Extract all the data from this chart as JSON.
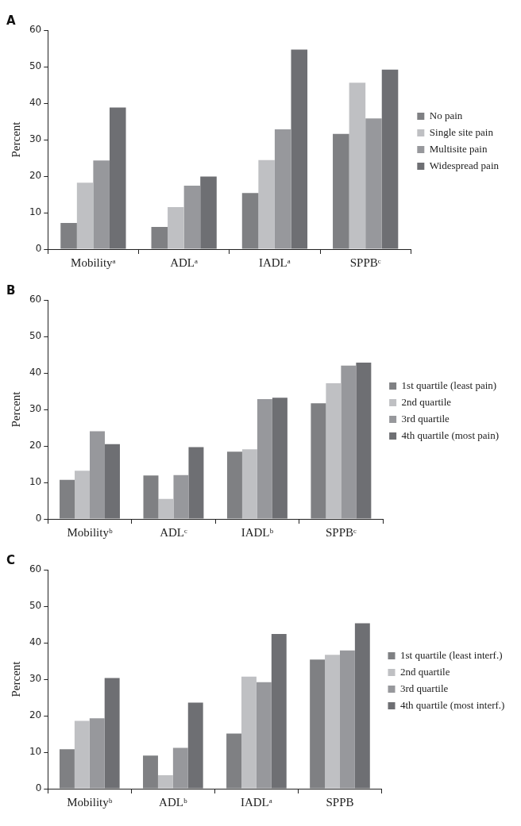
{
  "chart_data": [
    {
      "type": "bar",
      "title": "A",
      "ylabel": "Percent",
      "categories": [
        "Mobilityᵃ",
        "ADLᵃ",
        "IADLᵃ",
        "SPPBᶜ"
      ],
      "ylim": [
        0,
        60
      ],
      "yticks": [
        0,
        10,
        20,
        30,
        40,
        50,
        60
      ],
      "grid": false,
      "legend": "right",
      "series": [
        {
          "name": "No pain",
          "color": "#7f8083",
          "values": [
            7.2,
            6.1,
            15.4,
            31.6
          ]
        },
        {
          "name": "Single site pain",
          "color": "#bfc0c3",
          "values": [
            18.2,
            11.5,
            24.4,
            45.6
          ]
        },
        {
          "name": "Multisite pain",
          "color": "#97989c",
          "values": [
            24.3,
            17.4,
            32.8,
            35.8
          ]
        },
        {
          "name": "Widespread pain",
          "color": "#6e6f73",
          "values": [
            38.8,
            19.9,
            54.7,
            49.2
          ]
        }
      ]
    },
    {
      "type": "bar",
      "title": "B",
      "ylabel": "Percent",
      "categories": [
        "Mobilityᵇ",
        "ADLᶜ",
        "IADLᵇ",
        "SPPBᶜ"
      ],
      "ylim": [
        0,
        60
      ],
      "yticks": [
        0,
        10,
        20,
        30,
        40,
        50,
        60
      ],
      "grid": false,
      "legend": "right",
      "series": [
        {
          "name": "1st quartile (least pain)",
          "color": "#7f8083",
          "values": [
            10.7,
            11.9,
            18.4,
            31.7
          ]
        },
        {
          "name": "2nd quartile",
          "color": "#bfc0c3",
          "values": [
            13.2,
            5.5,
            19.1,
            37.2
          ]
        },
        {
          "name": "3rd quartile",
          "color": "#97989c",
          "values": [
            24.0,
            12.0,
            32.8,
            42.0
          ]
        },
        {
          "name": "4th quartile (most pain)",
          "color": "#6e6f73",
          "values": [
            20.5,
            19.7,
            33.2,
            42.8
          ]
        }
      ]
    },
    {
      "type": "bar",
      "title": "C",
      "ylabel": "Percent",
      "categories": [
        "Mobilityᵇ",
        "ADLᵇ",
        "IADLᵃ",
        "SPPB"
      ],
      "ylim": [
        0,
        60
      ],
      "yticks": [
        0,
        10,
        20,
        30,
        40,
        50,
        60
      ],
      "grid": false,
      "legend": "right",
      "series": [
        {
          "name": "1st quartile (least interf.)",
          "color": "#7f8083",
          "values": [
            10.8,
            9.1,
            15.1,
            35.4
          ]
        },
        {
          "name": "2nd quartile",
          "color": "#bfc0c3",
          "values": [
            18.6,
            3.7,
            30.7,
            36.7
          ]
        },
        {
          "name": "3rd quartile",
          "color": "#97989c",
          "values": [
            19.3,
            11.2,
            29.2,
            37.9
          ]
        },
        {
          "name": "4th quartile (most interf.)",
          "color": "#6e6f73",
          "values": [
            30.3,
            23.6,
            42.4,
            45.3
          ]
        }
      ]
    }
  ]
}
